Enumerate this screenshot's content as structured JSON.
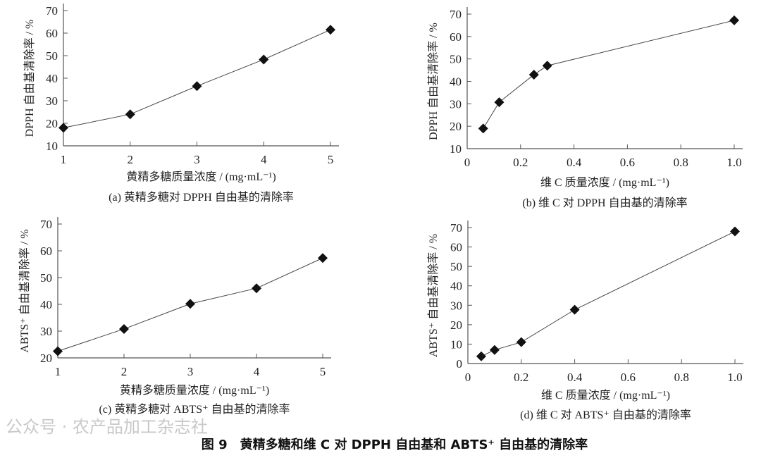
{
  "figure_caption": "图 9　黄精多糖和维 C 对 DPPH 自由基和 ABTS⁺ 自由基的清除率",
  "watermark": "公众号 · 农产品加工杂志社",
  "chart_data": [
    {
      "type": "line",
      "caption": "(a)  黄精多糖对 DPPH 自由基的清除率",
      "xlabel": "黄精多糖质量浓度 / (mg·mL⁻¹)",
      "ylabel": "DPPH 自由基清除率 / %",
      "xlim": [
        1,
        5
      ],
      "ylim": [
        10,
        70
      ],
      "xticks": [
        "1",
        "2",
        "3",
        "4",
        "5"
      ],
      "yticks": [
        "10",
        "20",
        "30",
        "40",
        "50",
        "60",
        "70"
      ],
      "marker": "diamond",
      "grid": false,
      "x": [
        1,
        2,
        3,
        4,
        5
      ],
      "y": [
        18.0,
        24.0,
        36.5,
        48.3,
        61.5
      ]
    },
    {
      "type": "line",
      "caption": "(b)  维 C 对 DPPH 自由基的清除率",
      "xlabel": "维 C 质量浓度 / (mg·mL⁻¹)",
      "ylabel": "DPPH 自由基清除率 / %",
      "xlim": [
        0,
        1.0
      ],
      "ylim": [
        10,
        70
      ],
      "xticks": [
        "0",
        "0.2",
        "0.4",
        "0.6",
        "0.8",
        "1.0"
      ],
      "yticks": [
        "10",
        "20",
        "30",
        "40",
        "50",
        "60",
        "70"
      ],
      "marker": "diamond",
      "grid": false,
      "x": [
        0.06,
        0.12,
        0.25,
        0.3,
        1.0
      ],
      "y": [
        19.0,
        30.7,
        43.0,
        47.0,
        67.2
      ]
    },
    {
      "type": "line",
      "caption": "(c)  黄精多糖对 ABTS⁺ 自由基的清除率",
      "xlabel": "黄精多糖质量浓度 / (mg·mL⁻¹)",
      "ylabel": "ABTS⁺ 自由基清除率 / %",
      "xlim": [
        1,
        5
      ],
      "ylim": [
        20,
        70
      ],
      "xticks": [
        "1",
        "2",
        "3",
        "4",
        "5"
      ],
      "yticks": [
        "20",
        "30",
        "40",
        "50",
        "60",
        "70"
      ],
      "marker": "diamond",
      "grid": false,
      "x": [
        1,
        2,
        3,
        4,
        5
      ],
      "y": [
        22.5,
        30.8,
        40.2,
        46.0,
        57.3
      ]
    },
    {
      "type": "line",
      "caption": "(d)  维 C 对 ABTS⁺ 自由基的清除率",
      "xlabel": "维 C 质量浓度 / (mg·mL⁻¹)",
      "ylabel": "ABTS⁺ 自由基清除率 / %",
      "xlim": [
        0,
        1.0
      ],
      "ylim": [
        0,
        70
      ],
      "xticks": [
        "0",
        "0.2",
        "0.4",
        "0.6",
        "0.8",
        "1.0"
      ],
      "yticks": [
        "0",
        "10",
        "20",
        "30",
        "40",
        "50",
        "60",
        "70"
      ],
      "marker": "diamond",
      "grid": false,
      "x": [
        0.05,
        0.1,
        0.2,
        0.4,
        1.0
      ],
      "y": [
        3.7,
        7.0,
        11.0,
        27.7,
        68.0
      ]
    }
  ]
}
